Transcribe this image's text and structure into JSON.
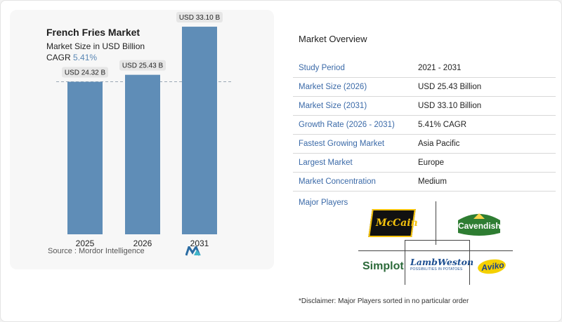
{
  "chart": {
    "title": "French Fries Market",
    "subtitle": "Market Size in USD Billion",
    "cagr_label": "CAGR",
    "cagr_value": "5.41%",
    "source": "Source :  Mordor Intelligence"
  },
  "chart_data": {
    "type": "bar",
    "title": "French Fries Market",
    "subtitle": "Market Size in USD Billion",
    "categories": [
      "2025",
      "2026",
      "2031"
    ],
    "values": [
      24.32,
      25.43,
      33.1
    ],
    "data_labels": [
      "USD 24.32 B",
      "USD 25.43 B",
      "USD 33.10 B"
    ],
    "ylim": [
      0,
      34
    ],
    "grid": false,
    "reference_line": "dashed line at 2025 value",
    "bar_color": "#5f8db7"
  },
  "overview": {
    "title": "Market Overview",
    "rows": [
      {
        "label": "Study Period",
        "value": "2021 - 2031"
      },
      {
        "label": "Market Size (2026)",
        "value": "USD 25.43 Billion"
      },
      {
        "label": "Market Size (2031)",
        "value": "USD 33.10 Billion"
      },
      {
        "label": "Growth Rate (2026 - 2031)",
        "value": "5.41% CAGR"
      },
      {
        "label": "Fastest Growing Market",
        "value": "Asia Pacific"
      },
      {
        "label": "Largest Market",
        "value": "Europe"
      },
      {
        "label": "Market Concentration",
        "value": "Medium"
      }
    ],
    "players_label": "Major Players",
    "players": [
      "McCain",
      "Cavendish",
      "Simplot",
      "LambWeston",
      "Aviko"
    ],
    "lambweston_tagline": "POSSIBILITIES IN POTATOES",
    "disclaimer": "*Disclaimer: Major Players sorted in no particular order"
  },
  "colors": {
    "accent": "#3b6aa8",
    "bar": "#5f8db7",
    "cagr": "#5a87b5"
  }
}
